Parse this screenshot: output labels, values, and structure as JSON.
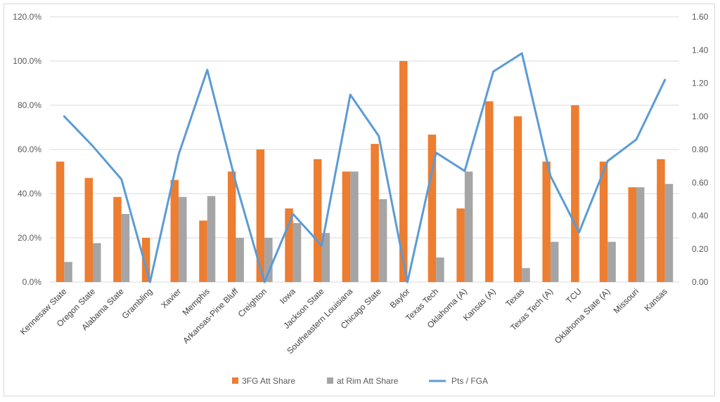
{
  "chart_data": {
    "type": "bar",
    "title": "",
    "xlabel": "",
    "ylabel": "",
    "y2label": "",
    "categories": [
      "Kennesaw State",
      "Oregon State",
      "Alabama State",
      "Grambling",
      "Xavier",
      "Memphis",
      "Arkansas-Pine Bluff",
      "Creighton",
      "Iowa",
      "Jackson State",
      "Southeastern Louisiana",
      "Chicago State",
      "Baylor",
      "Texas Tech",
      "Oklahoma (A)",
      "Kansas (A)",
      "Texas",
      "Texas Tech (A)",
      "TCU",
      "Oklahoma State (A)",
      "Missouri",
      "Kansas"
    ],
    "series": [
      {
        "name": "3FG Att Share",
        "type": "bar",
        "axis": "left",
        "color": "#ed7d31",
        "values": [
          0.545,
          0.471,
          0.385,
          0.2,
          0.462,
          0.278,
          0.5,
          0.6,
          0.333,
          0.556,
          0.5,
          0.625,
          1.0,
          0.667,
          0.333,
          0.818,
          0.75,
          0.545,
          0.8,
          0.545,
          0.429,
          0.556
        ]
      },
      {
        "name": "at Rim Att Share",
        "type": "bar",
        "axis": "left",
        "color": "#a5a5a5",
        "values": [
          0.091,
          0.176,
          0.308,
          0.0,
          0.385,
          0.389,
          0.2,
          0.2,
          0.267,
          0.222,
          0.5,
          0.375,
          0.0,
          0.111,
          0.5,
          0.0,
          0.063,
          0.182,
          0.0,
          0.182,
          0.429,
          0.444
        ]
      },
      {
        "name": "Pts / FGA",
        "type": "line",
        "axis": "right",
        "color": "#5b9bd5",
        "values": [
          1.0,
          0.82,
          0.62,
          0.0,
          0.77,
          1.28,
          0.6,
          0.0,
          0.41,
          0.22,
          1.13,
          0.88,
          0.0,
          0.78,
          0.67,
          1.27,
          1.38,
          0.64,
          0.3,
          0.73,
          0.86,
          1.22
        ]
      }
    ],
    "y_left": {
      "min": 0,
      "max": 1.2,
      "step": 0.2,
      "tick_labels": [
        "0.0%",
        "20.0%",
        "40.0%",
        "60.0%",
        "80.0%",
        "100.0%",
        "120.0%"
      ]
    },
    "y_right": {
      "min": 0,
      "max": 1.6,
      "step": 0.2,
      "tick_labels": [
        "0.00",
        "0.20",
        "0.40",
        "0.60",
        "0.80",
        "1.00",
        "1.20",
        "1.40",
        "1.60"
      ]
    },
    "grid": true,
    "gridline_color": "#d9d9d9",
    "legend_position": "bottom"
  }
}
